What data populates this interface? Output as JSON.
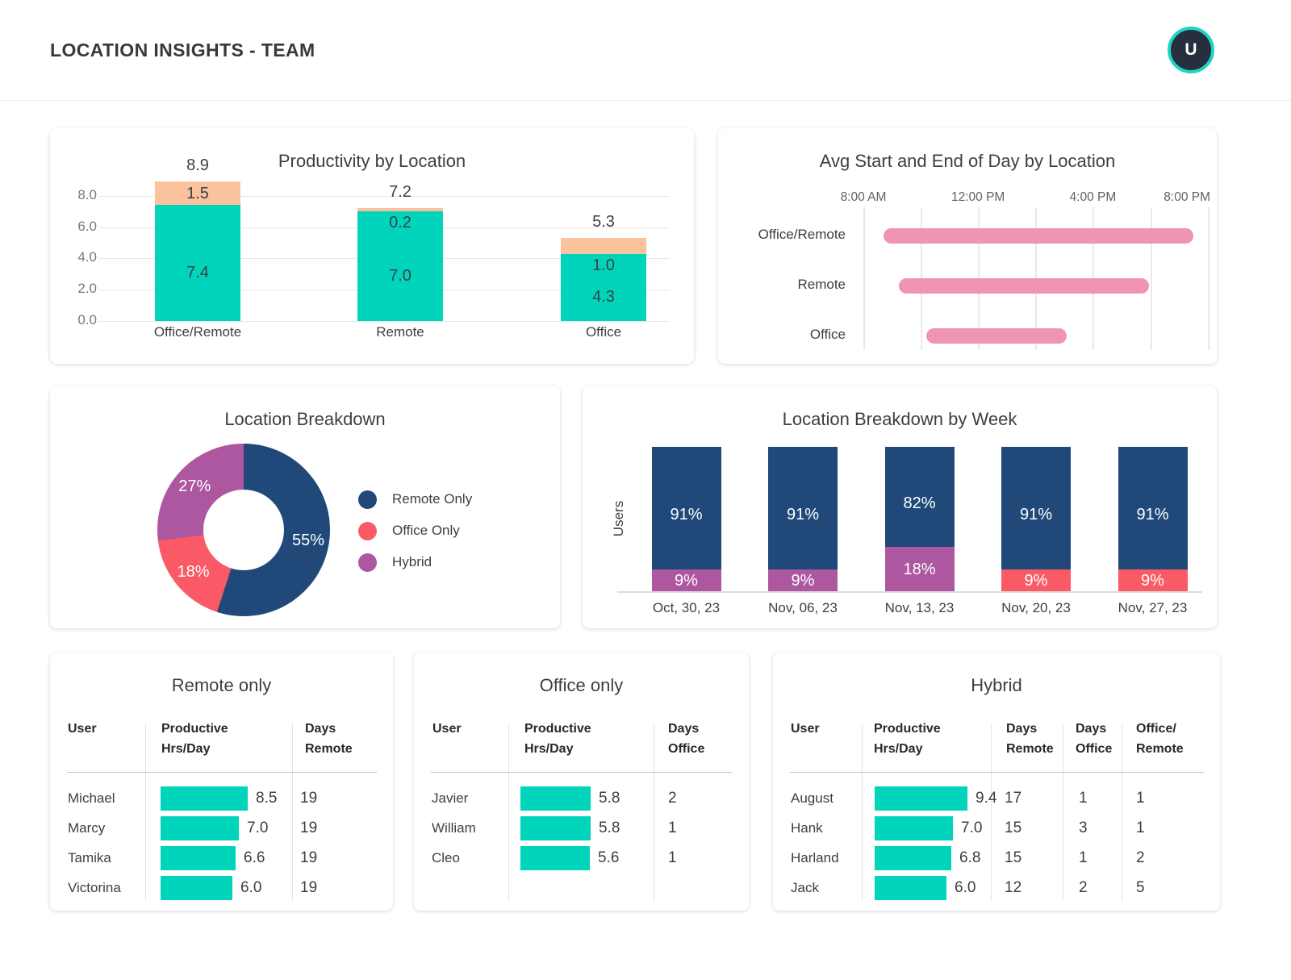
{
  "header": {
    "title": "LOCATION INSIGHTS - TEAM",
    "avatar_letter": "U"
  },
  "colors": {
    "teal": "#00d5bc",
    "peach": "#fbc29e",
    "pink": "#ef94b3",
    "navy": "#20497a",
    "coral": "#fa5a66",
    "purple": "#ad57a1",
    "avatar_ring": "#1fd4c2",
    "avatar_bg": "#262f3e"
  },
  "chart_data": [
    {
      "id": "productivity",
      "type": "bar",
      "stacked": true,
      "title": "Productivity by Location",
      "categories": [
        "Office/Remote",
        "Remote",
        "Office"
      ],
      "series": [
        {
          "name": "productive-hours",
          "color_key": "teal",
          "values": [
            "7.4",
            "7.0",
            "4.3"
          ]
        },
        {
          "name": "other-hours",
          "color_key": "peach",
          "values": [
            "1.5",
            "0.2",
            "1.0"
          ]
        }
      ],
      "totals": [
        "8.9",
        "7.2",
        "5.3"
      ],
      "y_ticks": [
        "0.0",
        "2.0",
        "4.0",
        "6.0",
        "8.0"
      ],
      "ylim": [
        0,
        8
      ],
      "grid": true,
      "xlabel": "",
      "ylabel": ""
    },
    {
      "id": "day-span",
      "type": "bar",
      "orientation": "horizontal-range",
      "title": "Avg Start and End of Day by Location",
      "x_ticks": [
        "8:00 AM",
        "12:00 PM",
        "4:00 PM",
        "8:00 PM"
      ],
      "x_tick_hours": [
        8,
        12,
        16,
        20
      ],
      "axis_hours": [
        8,
        20
      ],
      "grid_step_hours": 2,
      "rows": [
        {
          "label": "Office/Remote",
          "start_hour": 8.7,
          "end_hour": 19.5
        },
        {
          "label": "Remote",
          "start_hour": 9.25,
          "end_hour": 17.95
        },
        {
          "label": "Office",
          "start_hour": 10.2,
          "end_hour": 15.1
        }
      ],
      "bar_color_key": "pink"
    },
    {
      "id": "location-breakdown",
      "type": "pie",
      "title": "Location Breakdown",
      "legend_position": "right",
      "slices": [
        {
          "label": "Remote Only",
          "pct": 55,
          "color_key": "navy"
        },
        {
          "label": "Office Only",
          "pct": 18,
          "color_key": "coral"
        },
        {
          "label": "Hybrid",
          "pct": 27,
          "color_key": "purple"
        }
      ]
    },
    {
      "id": "breakdown-by-week",
      "type": "bar",
      "stacked": true,
      "title": "Location Breakdown by Week",
      "ylabel": "Users",
      "categories": [
        "Oct, 30, 23",
        "Nov, 06, 23",
        "Nov, 13, 23",
        "Nov, 20, 23",
        "Nov, 27, 23"
      ],
      "bars": [
        {
          "top_pct": 91,
          "top_color_key": "navy",
          "bottom_pct": 9,
          "bottom_color_key": "purple"
        },
        {
          "top_pct": 91,
          "top_color_key": "navy",
          "bottom_pct": 9,
          "bottom_color_key": "purple"
        },
        {
          "top_pct": 82,
          "top_color_key": "navy",
          "bottom_pct": 18,
          "bottom_color_key": "purple"
        },
        {
          "top_pct": 91,
          "top_color_key": "navy",
          "bottom_pct": 9,
          "bottom_color_key": "coral"
        },
        {
          "top_pct": 91,
          "top_color_key": "navy",
          "bottom_pct": 9,
          "bottom_color_key": "coral"
        }
      ]
    },
    {
      "id": "remote-only-table",
      "type": "table",
      "title": "Remote only",
      "columns": [
        [
          "User",
          ""
        ],
        [
          "Productive",
          "Hrs/Day"
        ],
        [
          "Days",
          "Remote"
        ]
      ],
      "bar_color_key": "teal",
      "rows": [
        {
          "user": "Michael",
          "hrs": "8.5",
          "extras": [
            "19"
          ]
        },
        {
          "user": "Marcy",
          "hrs": "7.0",
          "extras": [
            "19"
          ]
        },
        {
          "user": "Tamika",
          "hrs": "6.6",
          "extras": [
            "19"
          ]
        },
        {
          "user": "Victorina",
          "hrs": "6.0",
          "extras": [
            "19"
          ]
        }
      ]
    },
    {
      "id": "office-only-table",
      "type": "table",
      "title": "Office only",
      "columns": [
        [
          "User",
          ""
        ],
        [
          "Productive",
          "Hrs/Day"
        ],
        [
          "Days",
          "Office"
        ]
      ],
      "bar_color_key": "teal",
      "rows": [
        {
          "user": "Javier",
          "hrs": "5.8",
          "extras": [
            "2"
          ]
        },
        {
          "user": "William",
          "hrs": "5.8",
          "extras": [
            "1"
          ]
        },
        {
          "user": "Cleo",
          "hrs": "5.6",
          "extras": [
            "1"
          ]
        }
      ]
    },
    {
      "id": "hybrid-table",
      "type": "table",
      "title": "Hybrid",
      "columns": [
        [
          "User",
          ""
        ],
        [
          "Productive",
          "Hrs/Day"
        ],
        [
          "Days",
          "Remote"
        ],
        [
          "Days",
          "Office"
        ],
        [
          "Office/",
          "Remote"
        ]
      ],
      "bar_color_key": "teal",
      "rows": [
        {
          "user": "August",
          "hrs": "9.4",
          "extras": [
            "17",
            "1",
            "1"
          ]
        },
        {
          "user": "Hank",
          "hrs": "7.0",
          "extras": [
            "15",
            "3",
            "1"
          ]
        },
        {
          "user": "Harland",
          "hrs": "6.8",
          "extras": [
            "15",
            "1",
            "2"
          ]
        },
        {
          "user": "Jack",
          "hrs": "6.0",
          "extras": [
            "12",
            "2",
            "5"
          ]
        }
      ]
    }
  ]
}
